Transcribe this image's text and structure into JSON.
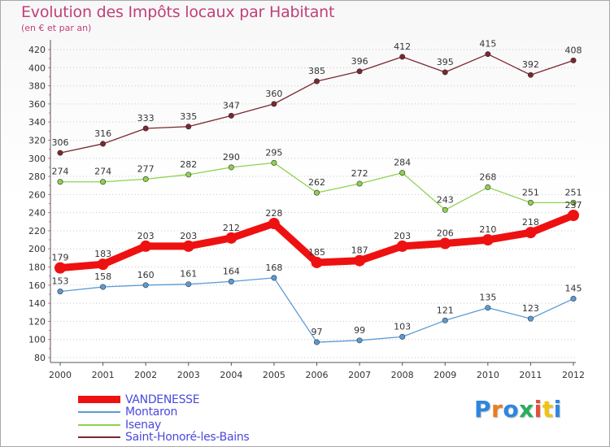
{
  "chart_data": {
    "type": "line",
    "title": "Evolution des Impôts locaux par Habitant",
    "subtitle": "(en € et par an)",
    "x": [
      "2000",
      "2001",
      "2002",
      "2003",
      "2004",
      "2005",
      "2006",
      "2007",
      "2008",
      "2009",
      "2010",
      "2011",
      "2012"
    ],
    "ylim": [
      80,
      420
    ],
    "yticks": [
      80,
      100,
      120,
      140,
      160,
      180,
      200,
      220,
      240,
      260,
      280,
      300,
      320,
      340,
      360,
      380,
      400,
      420
    ],
    "grid": "horizontal-dotted",
    "legend_position": "bottom-left",
    "series": [
      {
        "name": "VANDENESSE",
        "color": "#ee1111",
        "values": [
          179,
          183,
          203,
          203,
          212,
          228,
          185,
          187,
          203,
          206,
          210,
          218,
          237
        ],
        "labels": [
          "179",
          "183",
          "203",
          "203",
          "212",
          "228",
          "185",
          "187",
          "203",
          "206",
          "210",
          "218",
          "237"
        ]
      },
      {
        "name": "Montaron",
        "color": "#5b9bd5",
        "values": [
          153,
          158,
          160,
          161,
          164,
          168,
          97,
          99,
          103,
          121,
          135,
          123,
          145
        ],
        "labels": [
          "153",
          "158",
          "160",
          "161",
          "164",
          "168",
          "97",
          "99",
          "103",
          "121",
          "135",
          "123",
          "145"
        ]
      },
      {
        "name": "Isenay",
        "color": "#8fd14f",
        "values": [
          274,
          274,
          277,
          282,
          290,
          295,
          262,
          272,
          284,
          243,
          268,
          251,
          251
        ],
        "labels": [
          "274",
          "274",
          "277",
          "282",
          "290",
          "295",
          "262",
          "272",
          "284",
          "243",
          "268",
          "251",
          "251"
        ]
      },
      {
        "name": "Saint-Honoré-les-Bains",
        "color": "#7b2630",
        "values": [
          306,
          316,
          333,
          335,
          347,
          360,
          385,
          396,
          412,
          395,
          415,
          392,
          408
        ],
        "labels": [
          "306",
          "316",
          "333",
          "335",
          "347",
          "360",
          "385",
          "396",
          "412",
          "395",
          "415",
          "392",
          "408"
        ]
      }
    ]
  },
  "logo": {
    "letters": [
      "P",
      "r",
      "o",
      "x",
      "i",
      "t",
      "i"
    ],
    "colors": [
      "#2e86de",
      "#e67e22",
      "#2e86de",
      "#27ae60",
      "#e74c3c",
      "#f1c40f",
      "#2e86de"
    ]
  }
}
